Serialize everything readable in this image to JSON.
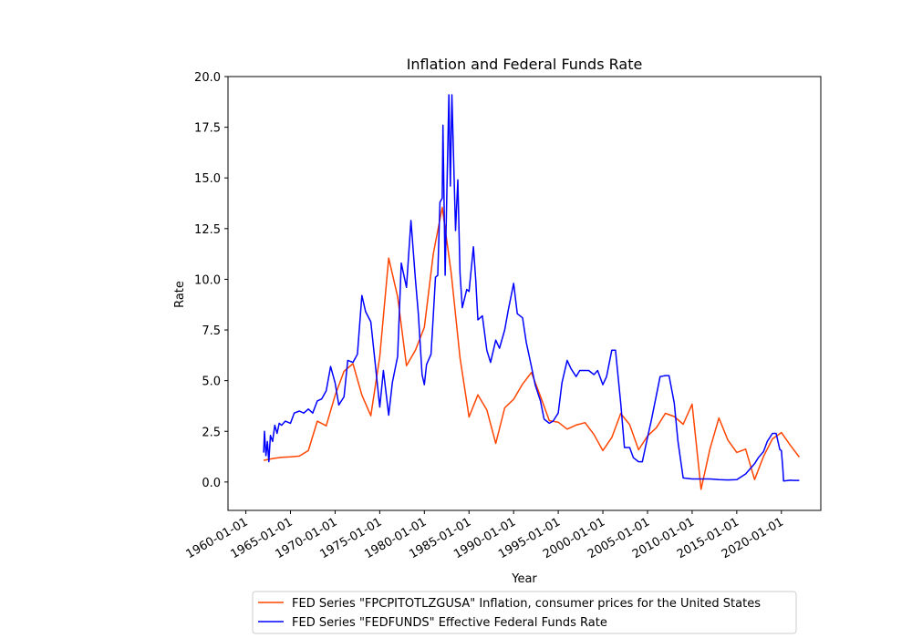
{
  "chart_data": {
    "type": "line",
    "title": "Inflation and Federal Funds Rate",
    "xlabel": "Year",
    "ylabel": "Rate",
    "xlim": [
      "1958-01-01",
      "2024-06-01"
    ],
    "ylim": [
      -1.4,
      20.0
    ],
    "x_ticks": [
      "1960-01-01",
      "1965-01-01",
      "1970-01-01",
      "1975-01-01",
      "1980-01-01",
      "1985-01-01",
      "1990-01-01",
      "1995-01-01",
      "2000-01-01",
      "2005-01-01",
      "2010-01-01",
      "2015-01-01",
      "2020-01-01"
    ],
    "y_ticks": [
      0.0,
      2.5,
      5.0,
      7.5,
      10.0,
      12.5,
      15.0,
      17.5,
      20.0
    ],
    "grid": false,
    "legend_position": "bottom-center",
    "series": [
      {
        "name": "FED Series \"FPCPITOTLZGUSA\" Inflation, consumer prices for the United States",
        "color": "#ff4500",
        "points": [
          [
            "1962-01-01",
            1.07
          ],
          [
            "1963-01-01",
            1.16
          ],
          [
            "1964-01-01",
            1.22
          ],
          [
            "1965-01-01",
            1.24
          ],
          [
            "1966-01-01",
            1.28
          ],
          [
            "1967-01-01",
            1.55
          ],
          [
            "1968-01-01",
            3.0
          ],
          [
            "1969-01-01",
            2.77
          ],
          [
            "1970-01-01",
            4.27
          ],
          [
            "1971-01-01",
            5.46
          ],
          [
            "1972-01-01",
            5.84
          ],
          [
            "1973-01-01",
            4.29
          ],
          [
            "1974-01-01",
            3.27
          ],
          [
            "1975-01-01",
            6.18
          ],
          [
            "1976-01-01",
            11.05
          ],
          [
            "1977-01-01",
            9.14
          ],
          [
            "1978-01-01",
            5.74
          ],
          [
            "1979-01-01",
            6.5
          ],
          [
            "1980-01-01",
            7.63
          ],
          [
            "1981-01-01",
            11.25
          ],
          [
            "1982-01-01",
            13.55
          ],
          [
            "1983-01-01",
            10.33
          ],
          [
            "1984-01-01",
            6.13
          ],
          [
            "1985-01-01",
            3.21
          ],
          [
            "1986-01-01",
            4.3
          ],
          [
            "1987-01-01",
            3.56
          ],
          [
            "1988-01-01",
            1.9
          ],
          [
            "1989-01-01",
            3.66
          ],
          [
            "1990-01-01",
            4.08
          ],
          [
            "1991-01-01",
            4.83
          ],
          [
            "1992-01-01",
            5.4
          ],
          [
            "1993-01-01",
            4.23
          ],
          [
            "1994-01-01",
            3.03
          ],
          [
            "1995-01-01",
            2.95
          ],
          [
            "1996-01-01",
            2.61
          ],
          [
            "1997-01-01",
            2.81
          ],
          [
            "1998-01-01",
            2.93
          ],
          [
            "1999-01-01",
            2.34
          ],
          [
            "2000-01-01",
            1.55
          ],
          [
            "2001-01-01",
            2.19
          ],
          [
            "2002-01-01",
            3.38
          ],
          [
            "2003-01-01",
            2.83
          ],
          [
            "2004-01-01",
            1.59
          ],
          [
            "2005-01-01",
            2.27
          ],
          [
            "2006-01-01",
            2.68
          ],
          [
            "2007-01-01",
            3.39
          ],
          [
            "2008-01-01",
            3.23
          ],
          [
            "2009-01-01",
            2.85
          ],
          [
            "2010-01-01",
            3.84
          ],
          [
            "2011-01-01",
            -0.36
          ],
          [
            "2012-01-01",
            1.64
          ],
          [
            "2013-01-01",
            3.16
          ],
          [
            "2014-01-01",
            2.07
          ],
          [
            "2015-01-01",
            1.46
          ],
          [
            "2016-01-01",
            1.62
          ],
          [
            "2017-01-01",
            0.12
          ],
          [
            "2018-01-01",
            1.26
          ],
          [
            "2019-01-01",
            2.13
          ],
          [
            "2020-01-01",
            2.44
          ],
          [
            "2021-01-01",
            1.81
          ],
          [
            "2022-01-01",
            1.23
          ]
        ]
      },
      {
        "name": "FED Series \"FEDFUNDS\" Effective Federal Funds Rate",
        "color": "#0000ff",
        "points": [
          [
            "1962-01-01",
            1.45
          ],
          [
            "1962-02-01",
            2.5
          ],
          [
            "1962-04-01",
            1.3
          ],
          [
            "1962-06-01",
            2.0
          ],
          [
            "1962-08-01",
            1.0
          ],
          [
            "1962-10-01",
            2.3
          ],
          [
            "1963-01-01",
            2.0
          ],
          [
            "1963-04-01",
            2.8
          ],
          [
            "1963-07-01",
            2.4
          ],
          [
            "1963-10-01",
            2.9
          ],
          [
            "1964-01-01",
            2.8
          ],
          [
            "1964-06-01",
            3.0
          ],
          [
            "1965-01-01",
            2.9
          ],
          [
            "1965-06-01",
            3.4
          ],
          [
            "1966-01-01",
            3.5
          ],
          [
            "1966-07-01",
            3.4
          ],
          [
            "1967-01-01",
            3.6
          ],
          [
            "1967-07-01",
            3.4
          ],
          [
            "1968-01-01",
            4.0
          ],
          [
            "1968-07-01",
            4.1
          ],
          [
            "1969-01-01",
            4.5
          ],
          [
            "1969-07-01",
            5.7
          ],
          [
            "1970-01-01",
            4.9
          ],
          [
            "1970-06-01",
            3.8
          ],
          [
            "1971-01-01",
            4.2
          ],
          [
            "1971-06-01",
            6.0
          ],
          [
            "1972-01-01",
            5.9
          ],
          [
            "1972-07-01",
            6.3
          ],
          [
            "1973-01-01",
            9.2
          ],
          [
            "1973-06-01",
            8.4
          ],
          [
            "1974-01-01",
            7.9
          ],
          [
            "1974-06-01",
            6.2
          ],
          [
            "1975-01-01",
            3.7
          ],
          [
            "1975-06-01",
            5.5
          ],
          [
            "1976-01-01",
            3.3
          ],
          [
            "1976-06-01",
            4.9
          ],
          [
            "1977-01-01",
            6.2
          ],
          [
            "1977-06-01",
            10.8
          ],
          [
            "1978-01-01",
            9.6
          ],
          [
            "1978-07-01",
            12.9
          ],
          [
            "1979-01-01",
            10.0
          ],
          [
            "1979-05-01",
            8.3
          ],
          [
            "1979-10-01",
            5.3
          ],
          [
            "1980-01-01",
            4.8
          ],
          [
            "1980-04-01",
            5.8
          ],
          [
            "1980-10-01",
            6.3
          ],
          [
            "1981-01-01",
            8.2
          ],
          [
            "1981-04-01",
            10.1
          ],
          [
            "1981-07-01",
            10.2
          ],
          [
            "1981-10-01",
            13.8
          ],
          [
            "1982-01-01",
            14.0
          ],
          [
            "1982-02-01",
            17.6
          ],
          [
            "1982-05-01",
            10.2
          ],
          [
            "1982-10-01",
            19.1
          ],
          [
            "1982-12-01",
            14.6
          ],
          [
            "1983-02-01",
            19.1
          ],
          [
            "1983-07-01",
            12.4
          ],
          [
            "1983-10-01",
            14.9
          ],
          [
            "1984-01-01",
            10.3
          ],
          [
            "1984-04-01",
            8.6
          ],
          [
            "1984-10-01",
            9.5
          ],
          [
            "1985-01-01",
            9.4
          ],
          [
            "1985-07-01",
            11.6
          ],
          [
            "1985-10-01",
            10.0
          ],
          [
            "1986-01-01",
            8.0
          ],
          [
            "1986-07-01",
            8.2
          ],
          [
            "1987-01-01",
            6.5
          ],
          [
            "1987-06-01",
            5.9
          ],
          [
            "1988-01-01",
            7.0
          ],
          [
            "1988-06-01",
            6.6
          ],
          [
            "1989-01-01",
            7.5
          ],
          [
            "1989-06-01",
            8.5
          ],
          [
            "1990-01-01",
            9.8
          ],
          [
            "1990-06-01",
            8.3
          ],
          [
            "1991-01-01",
            8.1
          ],
          [
            "1991-06-01",
            6.9
          ],
          [
            "1992-01-01",
            5.7
          ],
          [
            "1992-06-01",
            4.8
          ],
          [
            "1993-01-01",
            4.0
          ],
          [
            "1993-06-01",
            3.1
          ],
          [
            "1994-01-01",
            2.9
          ],
          [
            "1994-06-01",
            3.0
          ],
          [
            "1995-01-01",
            3.4
          ],
          [
            "1995-06-01",
            4.9
          ],
          [
            "1996-01-01",
            6.0
          ],
          [
            "1996-06-01",
            5.6
          ],
          [
            "1997-01-01",
            5.2
          ],
          [
            "1997-06-01",
            5.5
          ],
          [
            "1998-01-01",
            5.5
          ],
          [
            "1998-06-01",
            5.5
          ],
          [
            "1999-01-01",
            5.3
          ],
          [
            "1999-06-01",
            5.5
          ],
          [
            "2000-01-01",
            4.8
          ],
          [
            "2000-06-01",
            5.2
          ],
          [
            "2001-01-01",
            6.5
          ],
          [
            "2001-06-01",
            6.5
          ],
          [
            "2002-01-01",
            3.9
          ],
          [
            "2002-06-01",
            1.7
          ],
          [
            "2003-01-01",
            1.7
          ],
          [
            "2003-06-01",
            1.2
          ],
          [
            "2004-01-01",
            1.0
          ],
          [
            "2004-06-01",
            1.0
          ],
          [
            "2005-01-01",
            2.2
          ],
          [
            "2005-06-01",
            3.0
          ],
          [
            "2006-01-01",
            4.3
          ],
          [
            "2006-06-01",
            5.2
          ],
          [
            "2007-01-01",
            5.25
          ],
          [
            "2007-06-01",
            5.25
          ],
          [
            "2008-01-01",
            3.9
          ],
          [
            "2008-06-01",
            2.0
          ],
          [
            "2009-01-01",
            0.2
          ],
          [
            "2010-01-01",
            0.15
          ],
          [
            "2011-01-01",
            0.15
          ],
          [
            "2012-01-01",
            0.15
          ],
          [
            "2013-01-01",
            0.12
          ],
          [
            "2014-01-01",
            0.1
          ],
          [
            "2015-01-01",
            0.12
          ],
          [
            "2016-01-01",
            0.4
          ],
          [
            "2017-01-01",
            0.9
          ],
          [
            "2017-06-01",
            1.2
          ],
          [
            "2018-01-01",
            1.5
          ],
          [
            "2018-06-01",
            2.0
          ],
          [
            "2019-01-01",
            2.4
          ],
          [
            "2019-06-01",
            2.4
          ],
          [
            "2019-11-01",
            1.6
          ],
          [
            "2020-01-01",
            1.55
          ],
          [
            "2020-03-01",
            0.65
          ],
          [
            "2020-04-01",
            0.05
          ],
          [
            "2021-01-01",
            0.09
          ],
          [
            "2021-06-01",
            0.08
          ],
          [
            "2022-01-01",
            0.08
          ]
        ]
      }
    ]
  }
}
